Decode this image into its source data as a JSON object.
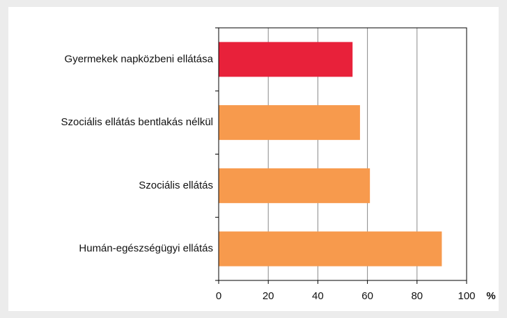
{
  "chart_data": {
    "type": "barh",
    "categories": [
      "Gyermekek napközbeni ellátása",
      "Szociális ellátás bentlakás nélkül",
      "Szociális ellátás",
      "Humán-egészségügyi ellátás"
    ],
    "values": [
      54,
      57,
      61,
      90
    ],
    "colors": [
      "#e8213a",
      "#f79a4d",
      "#f79a4d",
      "#f79a4d"
    ],
    "xlim": [
      0,
      100
    ],
    "xticks": [
      0,
      20,
      40,
      60,
      80,
      100
    ],
    "x_axis_label": "%",
    "grid": true
  }
}
